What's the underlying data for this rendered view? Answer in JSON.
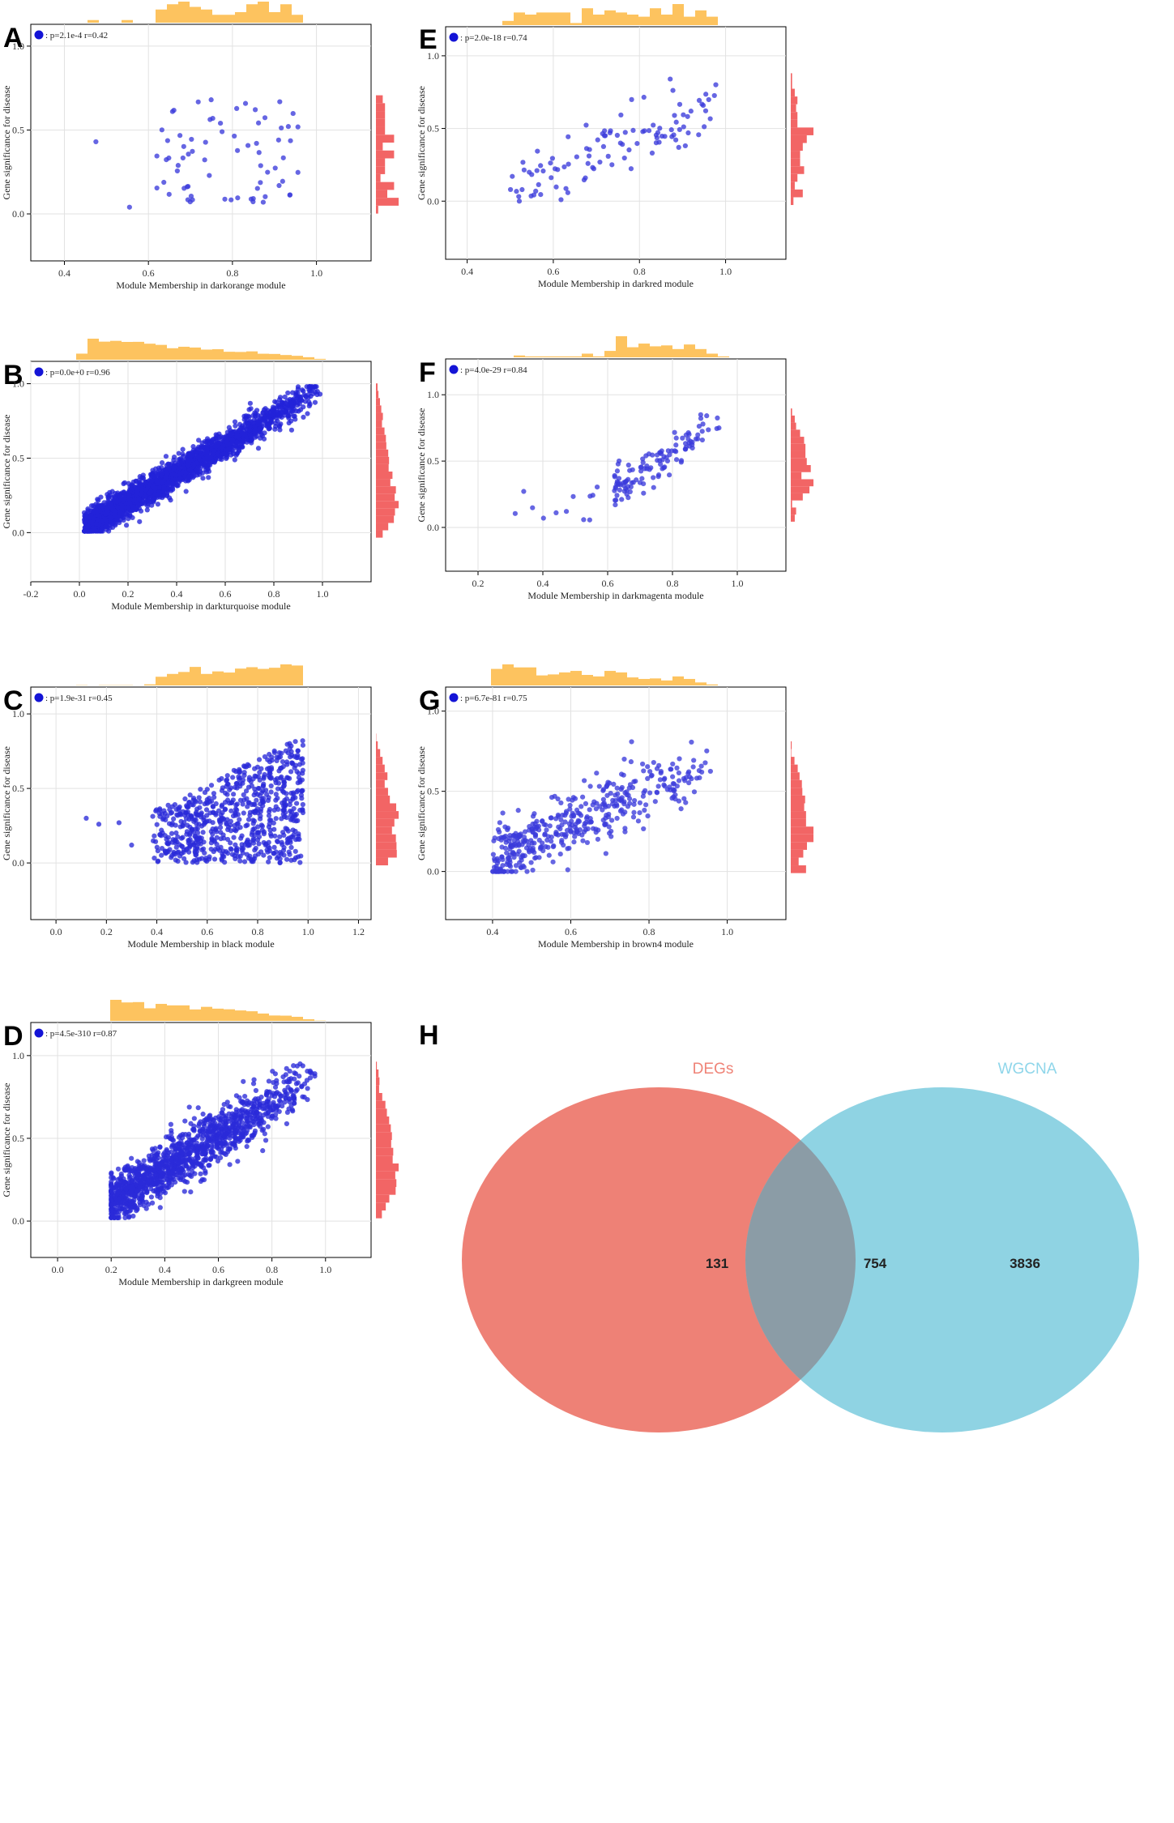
{
  "chart_data": [
    {
      "panel": "A",
      "type": "scatter",
      "xlabel": "Module Membership in darkorange module",
      "ylabel": "Gene significance for disease",
      "legend": ": p=2.1e-4 r=0.42",
      "xlim": [
        0.32,
        1.13
      ],
      "ylim": [
        -0.28,
        1.13
      ],
      "xticks": [
        0.4,
        0.6,
        0.8,
        1.0
      ],
      "yticks": [
        0.0,
        0.5,
        1.0
      ],
      "point_color": "#3b3bdb",
      "n_points": 70,
      "x_range": [
        0.47,
        0.96
      ],
      "y_range": [
        0.01,
        0.75
      ],
      "outliers": [
        [
          0.475,
          0.43
        ],
        [
          0.555,
          0.04
        ]
      ]
    },
    {
      "panel": "B",
      "type": "scatter",
      "xlabel": "Module Membership in darkturquoise module",
      "ylabel": "Gene significance for disease",
      "legend": ": p=0.0e+0 r=0.96",
      "xlim": [
        -0.2,
        1.2
      ],
      "ylim": [
        -0.33,
        1.15
      ],
      "xticks": [
        -0.2,
        0.0,
        0.2,
        0.4,
        0.6,
        0.8,
        1.0
      ],
      "yticks": [
        0.0,
        0.5,
        1.0
      ],
      "point_color": "#2222d9",
      "n_points": 2400,
      "x_range": [
        0.01,
        0.99
      ],
      "y_range": [
        0.01,
        0.98
      ]
    },
    {
      "panel": "C",
      "type": "scatter",
      "xlabel": "Module Membership in black module",
      "ylabel": "Gene significance for disease",
      "legend": ": p=1.9e-31 r=0.45",
      "xlim": [
        -0.1,
        1.25
      ],
      "ylim": [
        -0.38,
        1.18
      ],
      "xticks": [
        0.0,
        0.2,
        0.4,
        0.6,
        0.8,
        1.0,
        1.2
      ],
      "yticks": [
        0.0,
        0.5,
        1.0
      ],
      "point_color": "#2a2ad9",
      "n_points": 720,
      "x_range": [
        0.33,
        0.99
      ],
      "y_range": [
        0.0,
        0.86
      ],
      "outliers": [
        [
          0.12,
          0.3
        ],
        [
          0.17,
          0.26
        ],
        [
          0.25,
          0.27
        ],
        [
          0.3,
          0.12
        ]
      ]
    },
    {
      "panel": "D",
      "type": "scatter",
      "xlabel": "Module Membership in darkgreen module",
      "ylabel": "Gene significance for disease",
      "legend": ": p=4.5e-310 r=0.87",
      "xlim": [
        -0.1,
        1.17
      ],
      "ylim": [
        -0.22,
        1.2
      ],
      "xticks": [
        0.0,
        0.2,
        0.4,
        0.6,
        0.8,
        1.0
      ],
      "yticks": [
        0.0,
        0.5,
        1.0
      ],
      "point_color": "#2a2ad9",
      "n_points": 1300,
      "x_range": [
        0.11,
        0.96
      ],
      "y_range": [
        0.02,
        0.95
      ]
    },
    {
      "panel": "E",
      "type": "scatter",
      "xlabel": "Module Membership in darkred module",
      "ylabel": "Gene significance for disease",
      "legend": ": p=2.0e-18 r=0.74",
      "xlim": [
        0.35,
        1.14
      ],
      "ylim": [
        -0.4,
        1.2
      ],
      "xticks": [
        0.4,
        0.6,
        0.8,
        1.0
      ],
      "yticks": [
        0.0,
        0.5,
        1.0
      ],
      "point_color": "#3b3bdb",
      "n_points": 105,
      "x_range": [
        0.5,
        0.98
      ],
      "y_range": [
        0.0,
        0.84
      ]
    },
    {
      "panel": "F",
      "type": "scatter",
      "xlabel": "Module Membership in darkmagenta module",
      "ylabel": "Gene significance for disease",
      "legend": ": p=4.0e-29 r=0.84",
      "xlim": [
        0.1,
        1.15
      ],
      "ylim": [
        -0.33,
        1.27
      ],
      "xticks": [
        0.2,
        0.4,
        0.6,
        0.8,
        1.0
      ],
      "yticks": [
        0.0,
        0.5,
        1.0
      ],
      "point_color": "#3b3bdb",
      "n_points": 130,
      "x_range": [
        0.27,
        0.96
      ],
      "y_range": [
        0.04,
        0.92
      ]
    },
    {
      "panel": "G",
      "type": "scatter",
      "xlabel": "Module Membership in brown4 module",
      "ylabel": "Gene significance for disease",
      "legend": ": p=6.7e-81 r=0.75",
      "xlim": [
        0.28,
        1.15
      ],
      "ylim": [
        -0.3,
        1.15
      ],
      "xticks": [
        0.4,
        0.6,
        0.8,
        1.0
      ],
      "yticks": [
        0.0,
        0.5,
        1.0
      ],
      "point_color": "#3b3bdb",
      "n_points": 430,
      "x_range": [
        0.4,
        0.98
      ],
      "y_range": [
        0.0,
        0.93
      ]
    },
    {
      "panel": "H",
      "type": "venn",
      "sets": [
        {
          "name": "DEGs",
          "color": "#ee8176",
          "label_color": "#ef8377"
        },
        {
          "name": "WGCNA",
          "color": "#8fd3e3",
          "label_color": "#8fd6ea"
        }
      ],
      "regions": {
        "DEGs_only": "131",
        "intersection": "754",
        "WGCNA_only": "3836"
      }
    }
  ],
  "colors": {
    "top_histogram": "#fdc35f",
    "right_histogram": "#f26565",
    "axis": "#000000",
    "grid": "#e2e2e2",
    "venn_overlap": "#8b9ca6"
  }
}
